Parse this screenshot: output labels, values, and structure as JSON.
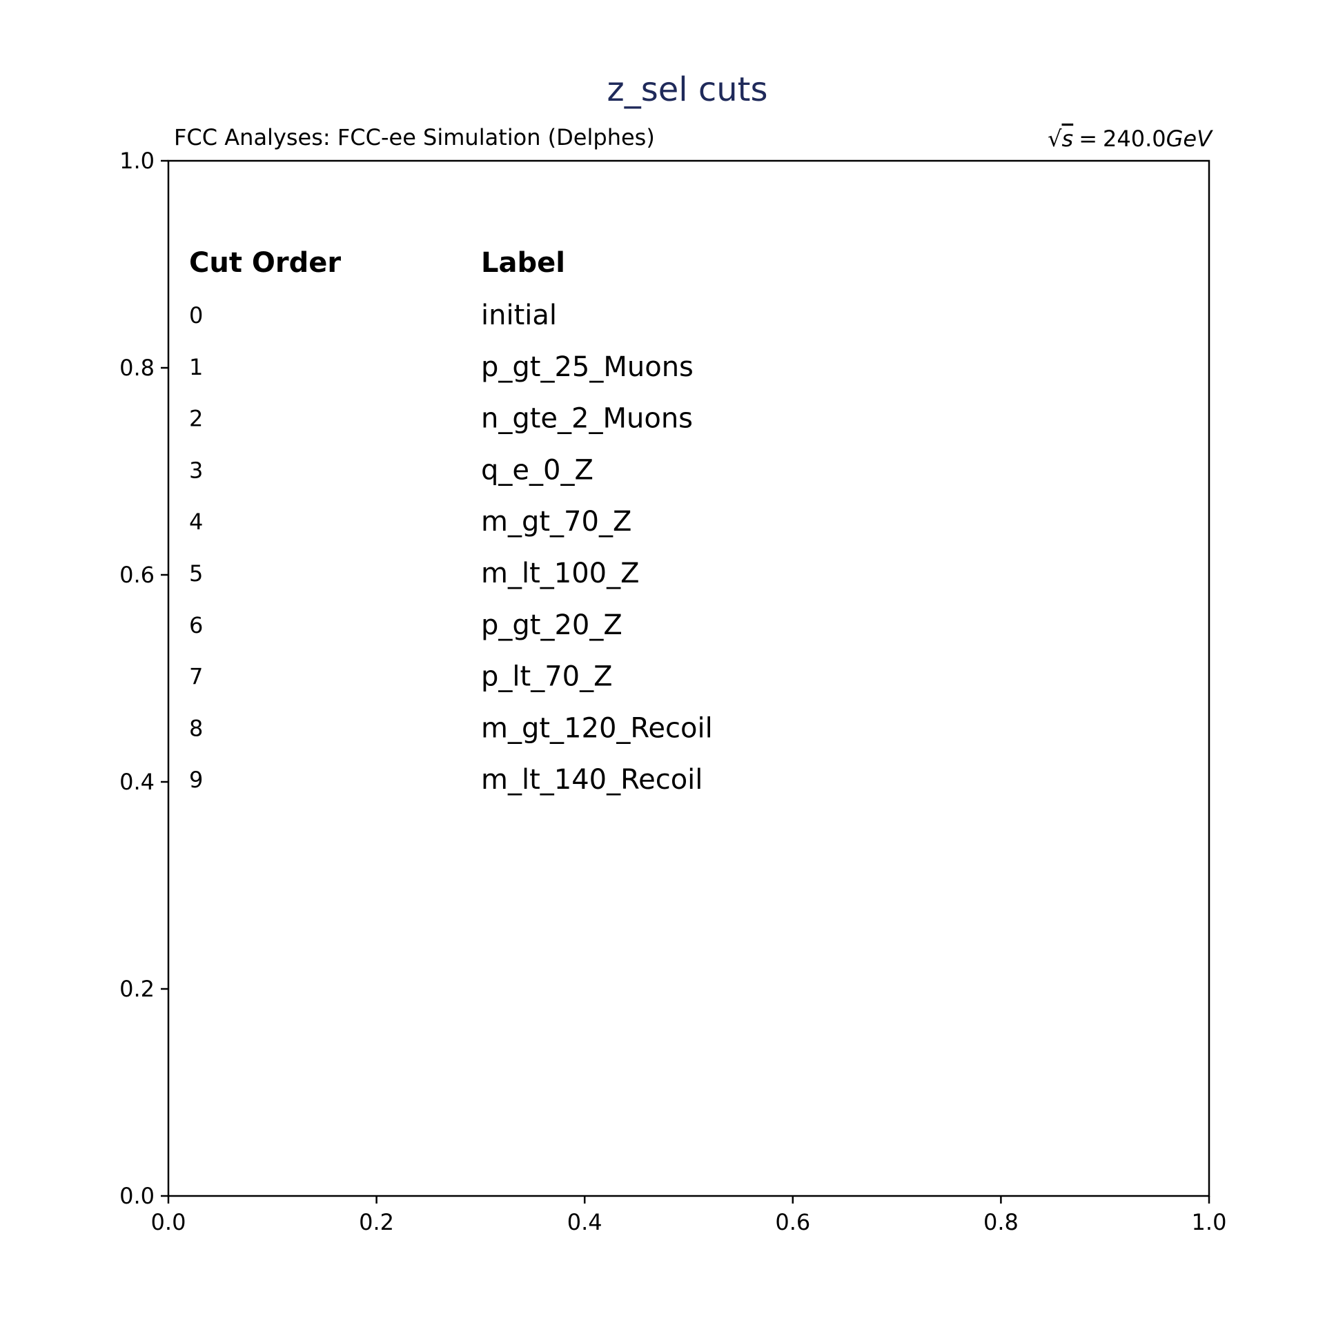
{
  "chart_data": {
    "type": "table",
    "title": "z_sel cuts",
    "title_color": "#1f2a5a",
    "header_left": "FCC Analyses: FCC-ee Simulation (Delphes)",
    "header_right": {
      "sqrt": "√",
      "s": "s",
      "equals": "=",
      "value": "240.0",
      "unit": "GeV"
    },
    "xlim": [
      0.0,
      1.0
    ],
    "ylim": [
      0.0,
      1.0
    ],
    "x_ticks": [
      "0.0",
      "0.2",
      "0.4",
      "0.6",
      "0.8",
      "1.0"
    ],
    "y_ticks": [
      "0.0",
      "0.2",
      "0.4",
      "0.6",
      "0.8",
      "1.0"
    ],
    "grid": false,
    "columns": [
      "Cut Order",
      "Label"
    ],
    "rows": [
      {
        "order": "0",
        "label": "initial"
      },
      {
        "order": "1",
        "label": "p_gt_25_Muons"
      },
      {
        "order": "2",
        "label": "n_gte_2_Muons"
      },
      {
        "order": "3",
        "label": "q_e_0_Z"
      },
      {
        "order": "4",
        "label": "m_gt_70_Z"
      },
      {
        "order": "5",
        "label": "m_lt_100_Z"
      },
      {
        "order": "6",
        "label": "p_gt_20_Z"
      },
      {
        "order": "7",
        "label": "p_lt_70_Z"
      },
      {
        "order": "8",
        "label": "m_gt_120_Recoil"
      },
      {
        "order": "9",
        "label": "m_lt_140_Recoil"
      }
    ]
  }
}
